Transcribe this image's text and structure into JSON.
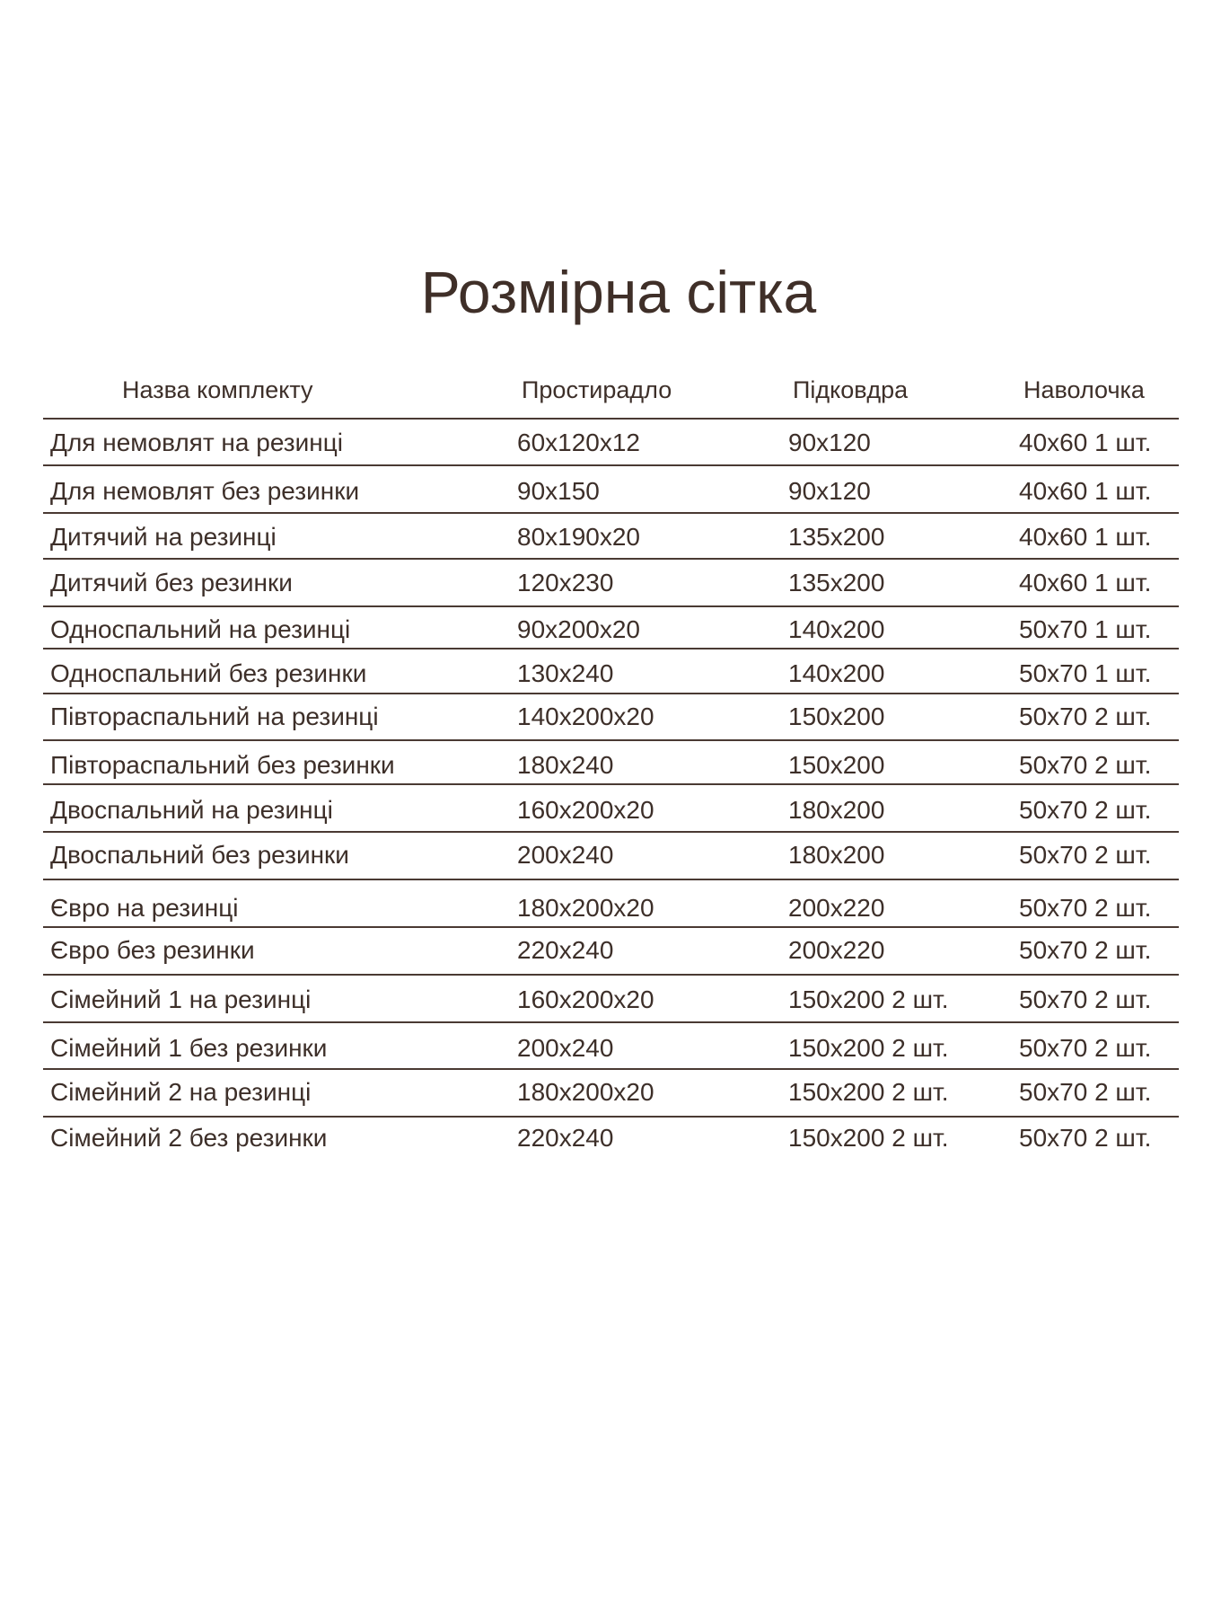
{
  "title": "Розмірна сітка",
  "columns": [
    "Назва комплекту",
    "Простирадло",
    "Підковдра",
    "Наволочка"
  ],
  "rows": [
    [
      "Для немовлят на резинці",
      "60x120x12",
      "90x120",
      "40x60 1 шт."
    ],
    [
      "Для немовлят без резинки",
      "90x150",
      "90x120",
      "40x60 1 шт."
    ],
    [
      "Дитячий на резинці",
      "80x190x20",
      "135x200",
      "40x60 1 шт."
    ],
    [
      "Дитячий без резинки",
      "120x230",
      "135x200",
      "40x60 1 шт."
    ],
    [
      "Односпальний на резинці",
      "90x200x20",
      "140x200",
      "50x70 1 шт."
    ],
    [
      "Односпальний без резинки",
      "130x240",
      "140x200",
      "50x70 1 шт."
    ],
    [
      "Півтораспальний на резинці",
      "140x200x20",
      "150x200",
      "50x70 2 шт."
    ],
    [
      "Півтораспальний без резинки",
      "180x240",
      "150x200",
      "50x70 2 шт."
    ],
    [
      "Двоспальний на резинці",
      "160x200x20",
      "180x200",
      "50x70 2 шт."
    ],
    [
      "Двоспальний без резинки",
      "200x240",
      "180x200",
      "50x70 2 шт."
    ],
    [
      "Євро на резинці",
      "180x200x20",
      "200x220",
      "50x70 2 шт."
    ],
    [
      "Євро без резинки",
      "220x240",
      "200x220",
      "50x70 2 шт."
    ],
    [
      "Сімейний 1 на резинці",
      "160x200x20",
      "150x200 2 шт.",
      "50x70 2 шт."
    ],
    [
      "Сімейний 1 без резинки",
      "200x240",
      "150x200 2 шт.",
      "50x70 2 шт."
    ],
    [
      "Сімейний 2 на резинці",
      "180x200x20",
      "150x200 2 шт.",
      "50x70 2 шт."
    ],
    [
      "Сімейний 2 без резинки",
      "220x240",
      "150x200 2 шт.",
      "50x70 2 шт."
    ]
  ]
}
